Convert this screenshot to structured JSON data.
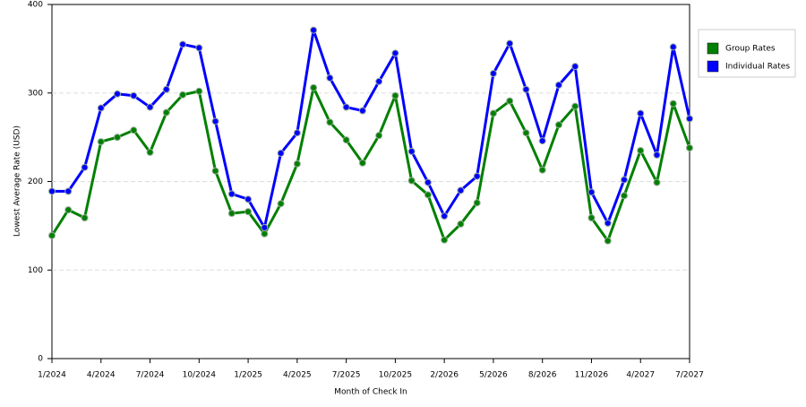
{
  "chart_data": {
    "type": "line",
    "x_label": "Month of Check In",
    "y_label": "Lowest Average Rate (USD)",
    "categories": [
      "1/2024",
      null,
      null,
      "4/2024",
      null,
      null,
      "7/2024",
      null,
      null,
      "10/2024",
      null,
      null,
      "1/2025",
      null,
      null,
      "4/2025",
      null,
      null,
      "7/2025",
      null,
      null,
      "10/2025",
      null,
      null,
      "2/2026",
      null,
      null,
      "5/2026",
      null,
      null,
      "8/2026",
      null,
      null,
      "11/2026",
      null,
      null,
      "4/2027",
      null,
      null,
      "7/2027"
    ],
    "series": [
      {
        "name": "Group Rates",
        "color": "#008000",
        "values": [
          139,
          168,
          159,
          245,
          250,
          258,
          233,
          278,
          298,
          302,
          212,
          164,
          166,
          141,
          175,
          220,
          306,
          267,
          247,
          221,
          252,
          297,
          201,
          185,
          134,
          152,
          176,
          277,
          291,
          255,
          213,
          264,
          285,
          159,
          133,
          184,
          235,
          199,
          288,
          238
        ]
      },
      {
        "name": "Individual Rates",
        "color": "#0000ff",
        "values": [
          189,
          189,
          216,
          283,
          299,
          297,
          284,
          304,
          355,
          351,
          268,
          186,
          180,
          148,
          232,
          255,
          371,
          317,
          284,
          280,
          313,
          345,
          234,
          199,
          161,
          190,
          206,
          322,
          356,
          304,
          246,
          309,
          330,
          188,
          153,
          202,
          277,
          230,
          352,
          271
        ]
      }
    ],
    "ylim": [
      0,
      400
    ],
    "yticks": [
      0,
      100,
      200,
      300,
      400
    ],
    "grid": true,
    "legend": "right"
  }
}
